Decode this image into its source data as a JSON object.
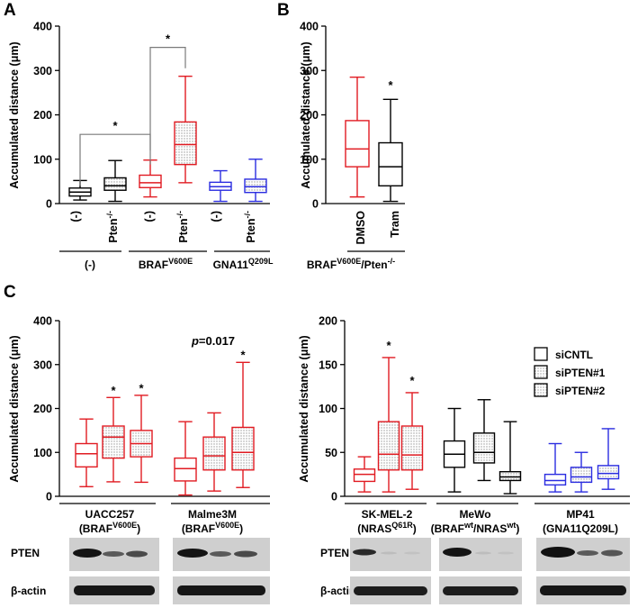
{
  "figure": {
    "panel_letters": [
      "A",
      "B",
      "C"
    ]
  },
  "colors": {
    "black": "#000000",
    "red": "#e11b22",
    "blue": "#2b2de0",
    "fill_hatch": "#e6e6e6",
    "blot_bg": "#cfcfcf",
    "blot_band": "#141414"
  },
  "legend": {
    "items": [
      "siCNTL",
      "siPTEN#1",
      "siPTEN#2"
    ]
  },
  "blots": {
    "labels": [
      "PTEN",
      "β-actin"
    ]
  },
  "chart_data": [
    {
      "id": "A",
      "type": "box",
      "ylabel": "Accumulated distance (μm)",
      "ylim": [
        0,
        400
      ],
      "yticks": [
        0,
        100,
        200,
        300,
        400
      ],
      "xticklabels": [
        "(-)",
        "Pten-/-",
        "(-)",
        "Pten-/-",
        "(-)",
        "Pten-/-"
      ],
      "groups": [
        {
          "label": "(-)",
          "sup": ""
        },
        {
          "label": "BRAF",
          "sup": "V600E"
        },
        {
          "label": "GNA11",
          "sup": "Q209L"
        }
      ],
      "boxes": [
        {
          "color": "black",
          "hatched": false,
          "min": 8,
          "q1": 17,
          "median": 26,
          "q3": 35,
          "max": 52
        },
        {
          "color": "black",
          "hatched": true,
          "min": 5,
          "q1": 30,
          "median": 40,
          "q3": 58,
          "max": 97
        },
        {
          "color": "red",
          "hatched": false,
          "min": 15,
          "q1": 36,
          "median": 47,
          "q3": 64,
          "max": 98
        },
        {
          "color": "red",
          "hatched": true,
          "min": 47,
          "q1": 88,
          "median": 133,
          "q3": 184,
          "max": 287
        },
        {
          "color": "blue",
          "hatched": false,
          "min": 5,
          "q1": 30,
          "median": 38,
          "q3": 48,
          "max": 74
        },
        {
          "color": "blue",
          "hatched": true,
          "min": 5,
          "q1": 25,
          "median": 38,
          "q3": 55,
          "max": 100
        }
      ],
      "significance": [
        {
          "between": [
            1,
            3
          ],
          "level": 156,
          "drop_left": 40,
          "drop_right": 88,
          "label": "*"
        },
        {
          "between": [
            3,
            4
          ],
          "level": 352,
          "drop_left": 120,
          "drop_right": 305,
          "label": "*"
        }
      ]
    },
    {
      "id": "B",
      "type": "box",
      "ylabel": "Accumulated distance (μm)",
      "ylim": [
        0,
        400
      ],
      "yticks": [
        0,
        100,
        200,
        300,
        400
      ],
      "xticklabels": [
        "DMSO",
        "Tram"
      ],
      "group_label": {
        "label": "BRAF",
        "sup": "V600E",
        "tail": "/Pten",
        "sup2": "-/-"
      },
      "boxes": [
        {
          "color": "red",
          "hatched": false,
          "min": 15,
          "q1": 83,
          "median": 123,
          "q3": 187,
          "max": 285
        },
        {
          "color": "black",
          "hatched": false,
          "min": 5,
          "q1": 40,
          "median": 83,
          "q3": 137,
          "max": 235
        }
      ],
      "stars": [
        {
          "box": 2,
          "value": 258,
          "label": "*"
        }
      ]
    },
    {
      "id": "C-left",
      "type": "box",
      "ylabel": "Accumulated distance (μm)",
      "ylim": [
        0,
        400
      ],
      "yticks": [
        0,
        100,
        200,
        300,
        400
      ],
      "groups": [
        {
          "label": "UACC257",
          "sub_pre": "(BRAF",
          "sup": "V600E",
          "sub_post": ")"
        },
        {
          "label": "Malme3M",
          "sub_pre": "(BRAF",
          "sup": "V600E",
          "sub_post": ")"
        }
      ],
      "annotation": {
        "italic": "p",
        "rest": "=0.017"
      },
      "boxes": [
        {
          "color": "red",
          "hatched": false,
          "min": 22,
          "q1": 67,
          "median": 97,
          "q3": 120,
          "max": 176
        },
        {
          "color": "red",
          "hatched": true,
          "min": 33,
          "q1": 87,
          "median": 135,
          "q3": 160,
          "max": 225
        },
        {
          "color": "red",
          "hatched": true,
          "min": 32,
          "q1": 90,
          "median": 120,
          "q3": 150,
          "max": 230
        },
        {
          "color": "red",
          "hatched": false,
          "min": 3,
          "q1": 35,
          "median": 63,
          "q3": 87,
          "max": 170
        },
        {
          "color": "red",
          "hatched": true,
          "min": 12,
          "q1": 60,
          "median": 92,
          "q3": 135,
          "max": 190
        },
        {
          "color": "red",
          "hatched": true,
          "min": 20,
          "q1": 60,
          "median": 100,
          "q3": 157,
          "max": 305
        }
      ],
      "stars": [
        {
          "box": 2,
          "value": 232,
          "label": "*"
        },
        {
          "box": 3,
          "value": 237,
          "label": "*"
        },
        {
          "box": 6,
          "value": 313,
          "label": "*"
        }
      ]
    },
    {
      "id": "C-right",
      "type": "box",
      "ylabel": "Accumulated distance (μm)",
      "ylim": [
        0,
        200
      ],
      "yticks": [
        0,
        50,
        100,
        150,
        200
      ],
      "groups": [
        {
          "label": "SK-MEL-2",
          "sub_pre": "(NRAS",
          "sup": "Q61R",
          "sub_post": ")"
        },
        {
          "label": "MeWo",
          "sub_pre": "(BRAF",
          "sup": "wt",
          "mid": "/NRAS",
          "sup2": "wt",
          "sub_post": ")"
        },
        {
          "label": "MP41",
          "sub_pre": "(GNA11Q209L)",
          "sup": "",
          "sub_post": ""
        }
      ],
      "boxes": [
        {
          "color": "red",
          "hatched": false,
          "min": 5,
          "q1": 17,
          "median": 25,
          "q3": 31,
          "max": 45
        },
        {
          "color": "red",
          "hatched": true,
          "min": 5,
          "q1": 30,
          "median": 48,
          "q3": 85,
          "max": 158
        },
        {
          "color": "red",
          "hatched": true,
          "min": 8,
          "q1": 30,
          "median": 47,
          "q3": 80,
          "max": 118
        },
        {
          "color": "black",
          "hatched": false,
          "min": 5,
          "q1": 33,
          "median": 48,
          "q3": 63,
          "max": 100
        },
        {
          "color": "black",
          "hatched": true,
          "min": 18,
          "q1": 38,
          "median": 50,
          "q3": 72,
          "max": 110
        },
        {
          "color": "black",
          "hatched": true,
          "min": 3,
          "q1": 18,
          "median": 22,
          "q3": 28,
          "max": 85
        },
        {
          "color": "blue",
          "hatched": false,
          "min": 5,
          "q1": 13,
          "median": 18,
          "q3": 25,
          "max": 60
        },
        {
          "color": "blue",
          "hatched": true,
          "min": 5,
          "q1": 16,
          "median": 22,
          "q3": 33,
          "max": 50
        },
        {
          "color": "blue",
          "hatched": true,
          "min": 8,
          "q1": 20,
          "median": 26,
          "q3": 35,
          "max": 77
        }
      ],
      "stars": [
        {
          "box": 2,
          "value": 167,
          "label": "*"
        },
        {
          "box": 3,
          "value": 127,
          "label": "*"
        }
      ]
    }
  ]
}
